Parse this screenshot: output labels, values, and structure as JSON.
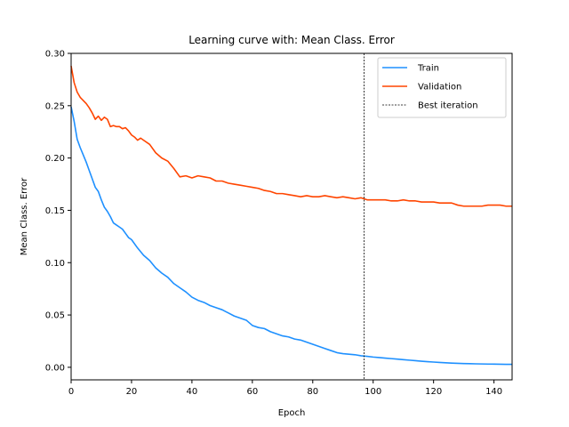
{
  "chart_data": {
    "type": "line",
    "title": "Learning curve with: Mean Class. Error",
    "xlabel": "Epoch",
    "ylabel": "Mean Class. Error",
    "xlim": [
      0,
      146
    ],
    "ylim": [
      -0.012,
      0.3
    ],
    "xticks": [
      0,
      20,
      40,
      60,
      80,
      100,
      120,
      140
    ],
    "yticks": [
      "0.00",
      "0.05",
      "0.10",
      "0.15",
      "0.20",
      "0.25",
      "0.30"
    ],
    "grid": false,
    "legend_position": "top-right",
    "series": [
      {
        "name": "Train",
        "color": "#1e90ff",
        "points": [
          [
            0,
            0.249
          ],
          [
            1,
            0.235
          ],
          [
            2,
            0.218
          ],
          [
            3,
            0.21
          ],
          [
            4,
            0.203
          ],
          [
            5,
            0.196
          ],
          [
            6,
            0.188
          ],
          [
            7,
            0.18
          ],
          [
            8,
            0.172
          ],
          [
            9,
            0.168
          ],
          [
            10,
            0.16
          ],
          [
            11,
            0.153
          ],
          [
            12,
            0.149
          ],
          [
            13,
            0.144
          ],
          [
            14,
            0.138
          ],
          [
            15,
            0.136
          ],
          [
            16,
            0.134
          ],
          [
            17,
            0.132
          ],
          [
            18,
            0.128
          ],
          [
            19,
            0.124
          ],
          [
            20,
            0.122
          ],
          [
            22,
            0.114
          ],
          [
            24,
            0.107
          ],
          [
            26,
            0.102
          ],
          [
            28,
            0.095
          ],
          [
            30,
            0.09
          ],
          [
            32,
            0.086
          ],
          [
            34,
            0.08
          ],
          [
            36,
            0.076
          ],
          [
            38,
            0.072
          ],
          [
            40,
            0.067
          ],
          [
            42,
            0.064
          ],
          [
            44,
            0.062
          ],
          [
            46,
            0.059
          ],
          [
            48,
            0.057
          ],
          [
            50,
            0.055
          ],
          [
            52,
            0.052
          ],
          [
            54,
            0.049
          ],
          [
            56,
            0.047
          ],
          [
            58,
            0.045
          ],
          [
            60,
            0.04
          ],
          [
            62,
            0.038
          ],
          [
            64,
            0.037
          ],
          [
            66,
            0.034
          ],
          [
            68,
            0.032
          ],
          [
            70,
            0.03
          ],
          [
            72,
            0.029
          ],
          [
            74,
            0.027
          ],
          [
            76,
            0.026
          ],
          [
            78,
            0.024
          ],
          [
            80,
            0.022
          ],
          [
            82,
            0.02
          ],
          [
            84,
            0.018
          ],
          [
            86,
            0.016
          ],
          [
            88,
            0.014
          ],
          [
            90,
            0.013
          ],
          [
            92,
            0.0125
          ],
          [
            94,
            0.012
          ],
          [
            96,
            0.011
          ],
          [
            98,
            0.0105
          ],
          [
            100,
            0.0098
          ],
          [
            102,
            0.0093
          ],
          [
            104,
            0.0088
          ],
          [
            106,
            0.0083
          ],
          [
            108,
            0.0078
          ],
          [
            110,
            0.0073
          ],
          [
            112,
            0.0068
          ],
          [
            114,
            0.0063
          ],
          [
            116,
            0.0058
          ],
          [
            118,
            0.0054
          ],
          [
            120,
            0.005
          ],
          [
            122,
            0.0046
          ],
          [
            124,
            0.0043
          ],
          [
            126,
            0.004
          ],
          [
            128,
            0.0038
          ],
          [
            130,
            0.0036
          ],
          [
            132,
            0.0035
          ],
          [
            134,
            0.0033
          ],
          [
            136,
            0.0032
          ],
          [
            138,
            0.0031
          ],
          [
            140,
            0.003
          ],
          [
            142,
            0.0029
          ],
          [
            144,
            0.0028
          ],
          [
            146,
            0.0028
          ]
        ]
      },
      {
        "name": "Validation",
        "color": "#ff4500",
        "points": [
          [
            0,
            0.288
          ],
          [
            1,
            0.272
          ],
          [
            2,
            0.263
          ],
          [
            3,
            0.258
          ],
          [
            4,
            0.255
          ],
          [
            5,
            0.252
          ],
          [
            6,
            0.248
          ],
          [
            7,
            0.243
          ],
          [
            8,
            0.237
          ],
          [
            9,
            0.24
          ],
          [
            10,
            0.236
          ],
          [
            11,
            0.239
          ],
          [
            12,
            0.237
          ],
          [
            13,
            0.23
          ],
          [
            14,
            0.231
          ],
          [
            15,
            0.23
          ],
          [
            16,
            0.23
          ],
          [
            17,
            0.228
          ],
          [
            18,
            0.229
          ],
          [
            19,
            0.226
          ],
          [
            20,
            0.222
          ],
          [
            21,
            0.22
          ],
          [
            22,
            0.217
          ],
          [
            23,
            0.219
          ],
          [
            24,
            0.217
          ],
          [
            26,
            0.213
          ],
          [
            28,
            0.205
          ],
          [
            30,
            0.2
          ],
          [
            32,
            0.197
          ],
          [
            34,
            0.19
          ],
          [
            36,
            0.182
          ],
          [
            38,
            0.183
          ],
          [
            40,
            0.181
          ],
          [
            42,
            0.183
          ],
          [
            44,
            0.182
          ],
          [
            46,
            0.181
          ],
          [
            48,
            0.178
          ],
          [
            50,
            0.178
          ],
          [
            52,
            0.176
          ],
          [
            54,
            0.175
          ],
          [
            56,
            0.174
          ],
          [
            58,
            0.173
          ],
          [
            60,
            0.172
          ],
          [
            62,
            0.171
          ],
          [
            64,
            0.169
          ],
          [
            66,
            0.168
          ],
          [
            68,
            0.166
          ],
          [
            70,
            0.166
          ],
          [
            72,
            0.165
          ],
          [
            74,
            0.164
          ],
          [
            76,
            0.163
          ],
          [
            78,
            0.164
          ],
          [
            80,
            0.163
          ],
          [
            82,
            0.163
          ],
          [
            84,
            0.164
          ],
          [
            86,
            0.163
          ],
          [
            88,
            0.162
          ],
          [
            90,
            0.163
          ],
          [
            92,
            0.162
          ],
          [
            94,
            0.161
          ],
          [
            96,
            0.162
          ],
          [
            98,
            0.16
          ],
          [
            100,
            0.16
          ],
          [
            102,
            0.16
          ],
          [
            104,
            0.16
          ],
          [
            106,
            0.159
          ],
          [
            108,
            0.159
          ],
          [
            110,
            0.16
          ],
          [
            112,
            0.159
          ],
          [
            114,
            0.159
          ],
          [
            116,
            0.158
          ],
          [
            118,
            0.158
          ],
          [
            120,
            0.158
          ],
          [
            122,
            0.157
          ],
          [
            124,
            0.157
          ],
          [
            126,
            0.157
          ],
          [
            128,
            0.155
          ],
          [
            130,
            0.154
          ],
          [
            132,
            0.154
          ],
          [
            134,
            0.154
          ],
          [
            136,
            0.154
          ],
          [
            138,
            0.155
          ],
          [
            140,
            0.155
          ],
          [
            142,
            0.155
          ],
          [
            144,
            0.154
          ],
          [
            146,
            0.154
          ]
        ]
      }
    ],
    "vline": {
      "name": "Best iteration",
      "x": 97,
      "color": "#000000",
      "style": "dashed"
    }
  }
}
